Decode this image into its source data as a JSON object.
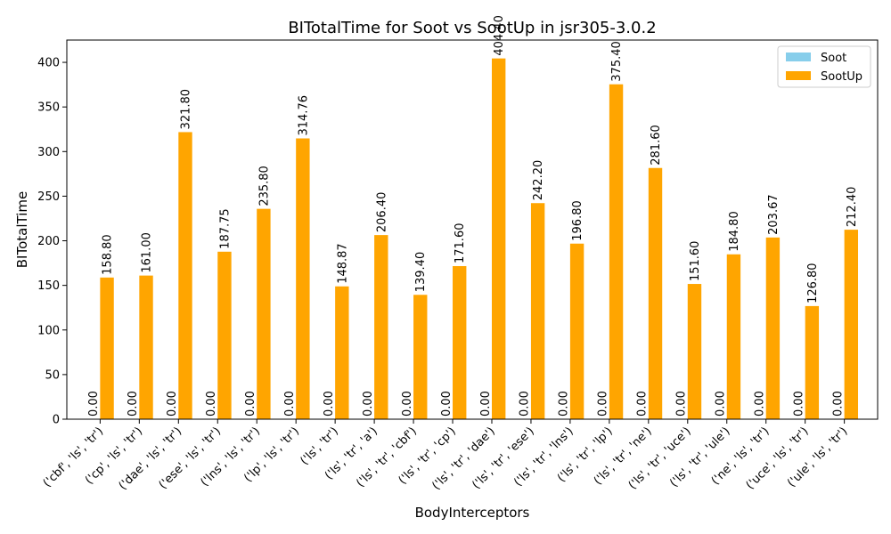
{
  "chart_data": {
    "type": "bar",
    "title": "BITotalTime for Soot vs SootUp in jsr305-3.0.2",
    "xlabel": "BodyInterceptors",
    "ylabel": "BITotalTime",
    "ylim": [
      0,
      425
    ],
    "yticks": [
      0,
      50,
      100,
      150,
      200,
      250,
      300,
      350,
      400
    ],
    "legend_position": "top-right",
    "grid": false,
    "categories": [
      "('cbf', 'ls', 'tr')",
      "('cp', 'ls', 'tr')",
      "('dae', 'ls', 'tr')",
      "('ese', 'ls', 'tr')",
      "('lns', 'ls', 'tr')",
      "('lp', 'ls', 'tr')",
      "('ls', 'tr')",
      "('ls', 'tr', 'a')",
      "('ls', 'tr', 'cbf')",
      "('ls', 'tr', 'cp')",
      "('ls', 'tr', 'dae')",
      "('ls', 'tr', 'ese')",
      "('ls', 'tr', 'lns')",
      "('ls', 'tr', 'lp')",
      "('ls', 'tr', 'ne')",
      "('ls', 'tr', 'uce')",
      "('ls', 'tr', 'ule')",
      "('ne', 'ls', 'tr')",
      "('uce', 'ls', 'tr')",
      "('ule', 'ls', 'tr')"
    ],
    "series": [
      {
        "name": "Soot",
        "color": "#87ceeb",
        "values": [
          0,
          0,
          0,
          0,
          0,
          0,
          0,
          0,
          0,
          0,
          0,
          0,
          0,
          0,
          0,
          0,
          0,
          0,
          0,
          0
        ],
        "labels": [
          "0.00",
          "0.00",
          "0.00",
          "0.00",
          "0.00",
          "0.00",
          "0.00",
          "0.00",
          "0.00",
          "0.00",
          "0.00",
          "0.00",
          "0.00",
          "0.00",
          "0.00",
          "0.00",
          "0.00",
          "0.00",
          "0.00",
          "0.00"
        ]
      },
      {
        "name": "SootUp",
        "color": "#ffa500",
        "values": [
          158.8,
          161.0,
          321.8,
          187.75,
          235.8,
          314.76,
          148.87,
          206.4,
          139.4,
          171.6,
          404.4,
          242.2,
          196.8,
          375.4,
          281.6,
          151.6,
          184.8,
          203.67,
          126.8,
          212.4
        ],
        "labels": [
          "158.80",
          "161.00",
          "321.80",
          "187.75",
          "235.80",
          "314.76",
          "148.87",
          "206.40",
          "139.40",
          "171.60",
          "404.40",
          "242.20",
          "196.80",
          "375.40",
          "281.60",
          "151.60",
          "184.80",
          "203.67",
          "126.80",
          "212.40"
        ]
      }
    ]
  }
}
